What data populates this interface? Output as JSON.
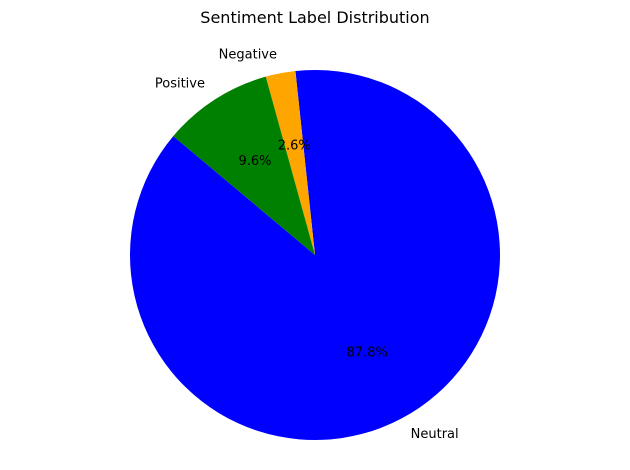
{
  "chart_data": {
    "type": "pie",
    "title": "Sentiment Label Distribution",
    "start_angle_deg": 140,
    "direction": "counterclockwise",
    "slices": [
      {
        "label": "Neutral",
        "value": 87.8,
        "value_label": "87.8%",
        "color": "#0000ff"
      },
      {
        "label": "Negative",
        "value": 2.6,
        "value_label": "2.6%",
        "color": "#ffa500"
      },
      {
        "label": "Positive",
        "value": 9.6,
        "value_label": "9.6%",
        "color": "#008000"
      }
    ],
    "legend": "none"
  }
}
